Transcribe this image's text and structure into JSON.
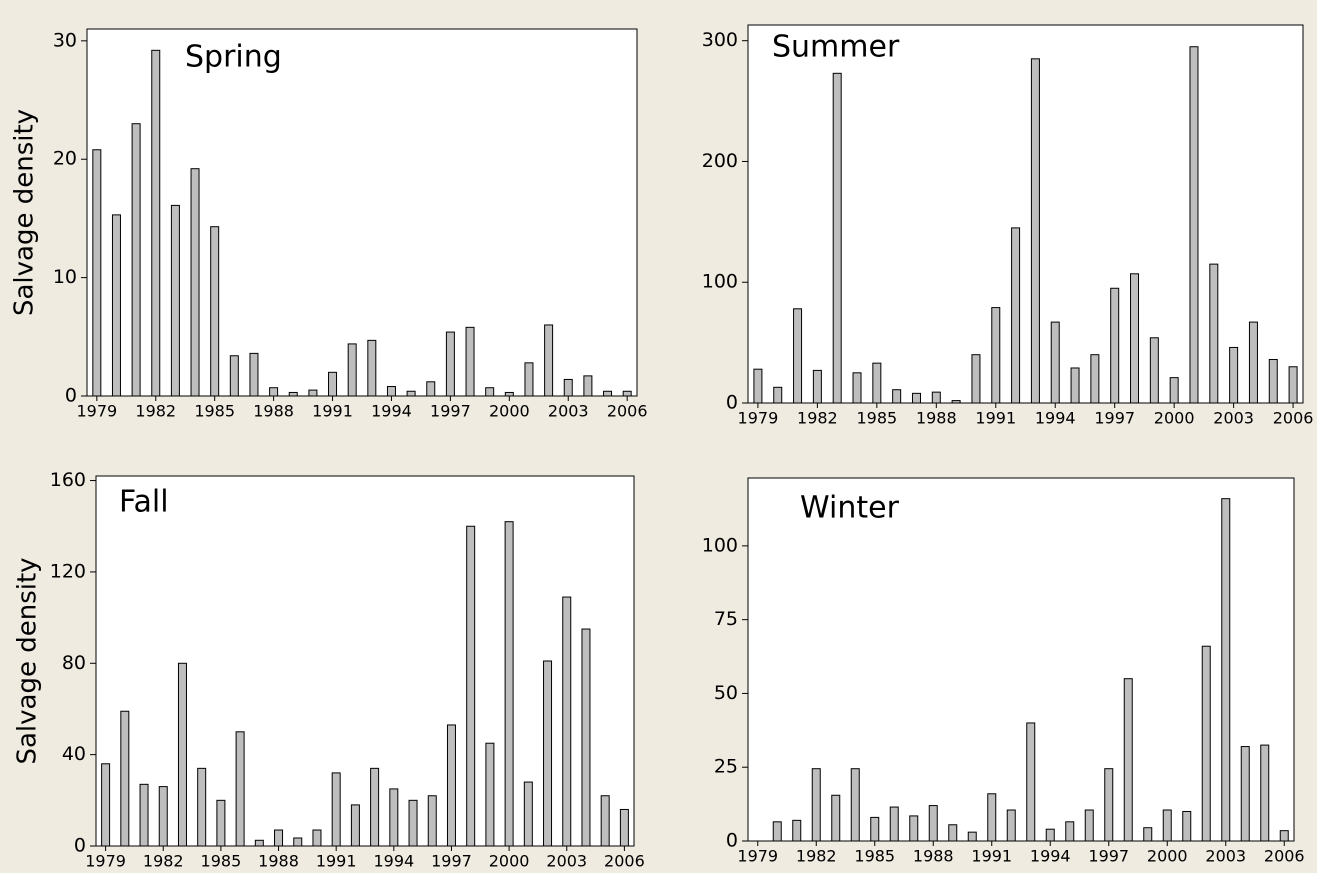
{
  "chart_data": [
    {
      "type": "bar",
      "title": "Spring",
      "y_label": "Salvage density",
      "color": "#bebebe",
      "categories": [
        "1979",
        null,
        null,
        "1982",
        null,
        null,
        "1985",
        null,
        null,
        "1988",
        null,
        null,
        "1991",
        null,
        null,
        "1994",
        null,
        null,
        "1997",
        null,
        null,
        "2000",
        null,
        null,
        "2003",
        null,
        null,
        "2006"
      ],
      "values": [
        20.8,
        15.3,
        23,
        29.2,
        16.1,
        19.2,
        14.3,
        3.4,
        3.6,
        0.7,
        0.3,
        0.5,
        2.0,
        4.4,
        4.7,
        0.8,
        0.4,
        1.2,
        5.4,
        5.8,
        0.7,
        0.3,
        2.8,
        6.0,
        1.4,
        1.7,
        0.4,
        0.4
      ],
      "ylim": [
        0,
        31
      ],
      "yticks": [
        0,
        10,
        20,
        30
      ]
    },
    {
      "type": "bar",
      "title": "Summer",
      "color": "#bebebe",
      "categories": [
        "1979",
        null,
        null,
        "1982",
        null,
        null,
        "1985",
        null,
        null,
        "1988",
        null,
        null,
        "1991",
        null,
        null,
        "1994",
        null,
        null,
        "1997",
        null,
        null,
        "2000",
        null,
        null,
        "2003",
        null,
        null,
        "2006"
      ],
      "values": [
        28,
        13,
        78,
        27,
        273,
        25,
        33,
        11,
        8,
        9,
        2,
        40,
        79,
        145,
        285,
        67,
        29,
        40,
        95,
        107,
        54,
        21,
        295,
        115,
        46,
        67,
        36,
        30
      ],
      "ylim": [
        0,
        313
      ],
      "yticks": [
        0,
        100,
        200,
        300
      ]
    },
    {
      "type": "bar",
      "title": "Fall",
      "y_label": "Salvage density",
      "color": "#bebebe",
      "categories": [
        "1979",
        null,
        null,
        "1982",
        null,
        null,
        "1985",
        null,
        null,
        "1988",
        null,
        null,
        "1991",
        null,
        null,
        "1994",
        null,
        null,
        "1997",
        null,
        null,
        "2000",
        null,
        null,
        "2003",
        null,
        null,
        "2006"
      ],
      "values": [
        36,
        59,
        27,
        26,
        80,
        34,
        20,
        50,
        2.5,
        7,
        3.5,
        7,
        32,
        18,
        34,
        25,
        20,
        22,
        53,
        140,
        45,
        142,
        28,
        81,
        109,
        95,
        22,
        16
      ],
      "ylim": [
        0,
        162
      ],
      "yticks": [
        0,
        40,
        80,
        120,
        160
      ]
    },
    {
      "type": "bar",
      "title": "Winter",
      "color": "#bebebe",
      "categories": [
        "1979",
        null,
        null,
        "1982",
        null,
        null,
        "1985",
        null,
        null,
        "1988",
        null,
        null,
        "1991",
        null,
        null,
        "1994",
        null,
        null,
        "1997",
        null,
        null,
        "2000",
        null,
        null,
        "2003",
        null,
        null,
        "2006"
      ],
      "values": [
        0,
        6.5,
        7,
        24.5,
        15.5,
        24.5,
        8,
        11.5,
        8.5,
        12,
        5.5,
        3,
        16,
        10.5,
        40,
        4,
        6.5,
        10.5,
        24.5,
        55,
        4.5,
        10.5,
        10,
        66,
        116,
        32,
        32.5,
        3.5
      ],
      "ylim": [
        0,
        123
      ],
      "yticks": [
        0,
        25,
        50,
        75,
        100
      ]
    }
  ]
}
